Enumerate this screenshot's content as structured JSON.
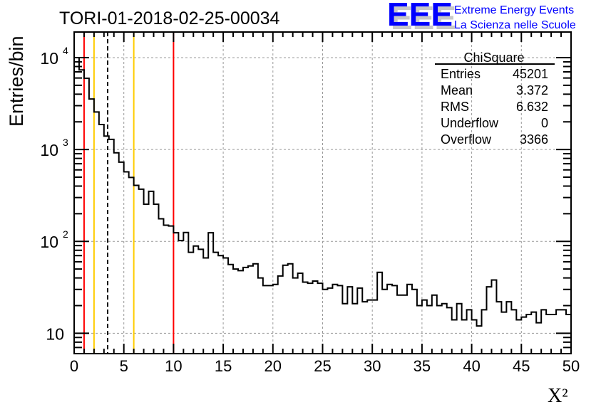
{
  "chart_data": {
    "type": "bar",
    "histogram_style": "step",
    "title": "TORI-01-2018-02-25-00034",
    "xlabel": "X²",
    "ylabel": "Entries/bin",
    "xlim": [
      0,
      50
    ],
    "ylim": [
      6,
      19000
    ],
    "yscale": "log",
    "grid": true,
    "bin_width": 0.5,
    "x_ticks": [
      "0",
      "5",
      "10",
      "15",
      "20",
      "25",
      "30",
      "35",
      "40",
      "45",
      "50"
    ],
    "y_ticks": [
      {
        "base": "10",
        "exp": ""
      },
      {
        "base": "10",
        "exp": "2"
      },
      {
        "base": "10",
        "exp": "3"
      },
      {
        "base": "10",
        "exp": "4"
      }
    ],
    "values": [
      10000,
      7350,
      5960,
      3550,
      2560,
      1870,
      1400,
      1290,
      920,
      729,
      572,
      496,
      407,
      370,
      254,
      351,
      254,
      176,
      150,
      147,
      124,
      102,
      125,
      76,
      89,
      82,
      66,
      124,
      76,
      70,
      66,
      56,
      50,
      48,
      52,
      54,
      57,
      40,
      33,
      33,
      34,
      42,
      55,
      57,
      40,
      45,
      36,
      35,
      37,
      35,
      30,
      31,
      34,
      33,
      21,
      32,
      21,
      31,
      22,
      23,
      23,
      46,
      30,
      34,
      33,
      26,
      26,
      34,
      30,
      20,
      23,
      20,
      26,
      20,
      21,
      19,
      14,
      21,
      14,
      18,
      14,
      12,
      18,
      32,
      38,
      22,
      17,
      22,
      18,
      14,
      15,
      16,
      17,
      13,
      18,
      16,
      16,
      18,
      18,
      16
    ],
    "vertical_lines": [
      {
        "x": 1,
        "color": "#ff0000",
        "style": "solid"
      },
      {
        "x": 10,
        "color": "#ff0000",
        "style": "solid"
      },
      {
        "x": 2,
        "color": "#ffcc00",
        "style": "solid"
      },
      {
        "x": 6,
        "color": "#ffcc00",
        "style": "solid"
      },
      {
        "x": 3.372,
        "color": "#000000",
        "style": "dashed"
      }
    ],
    "stats": {
      "title": "ChiSquare",
      "rows": [
        {
          "label": "Entries",
          "value": "45201"
        },
        {
          "label": "Mean",
          "value": "3.372"
        },
        {
          "label": "RMS",
          "value": "6.632"
        },
        {
          "label": "Underflow",
          "value": "0"
        },
        {
          "label": "Overflow",
          "value": "3366"
        }
      ]
    },
    "legend_position": "top-right"
  },
  "logo": {
    "letters": "EEE",
    "line1": "Extreme Energy Events",
    "line2": "La Scienza nelle Scuole",
    "color": "#0000ff"
  }
}
